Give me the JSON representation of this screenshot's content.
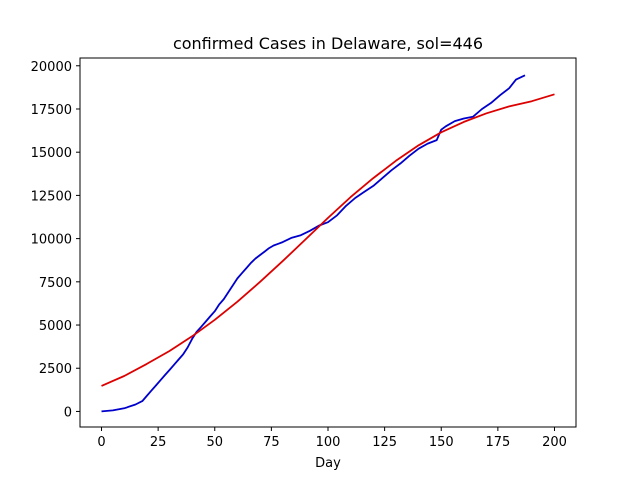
{
  "chart_data": {
    "type": "line",
    "title": "confirmed Cases in Delaware, sol=446",
    "xlabel": "Day",
    "ylabel": "",
    "xlim": [
      -9.5,
      209.5
    ],
    "ylim": [
      -900,
      20450
    ],
    "xticks": [
      0,
      25,
      50,
      75,
      100,
      125,
      150,
      175,
      200
    ],
    "yticks": [
      0,
      2500,
      5000,
      7500,
      10000,
      12500,
      15000,
      17500,
      20000
    ],
    "grid": false,
    "legend": null,
    "series": [
      {
        "color": "#0000cc",
        "x": [
          0,
          5,
          10,
          15,
          18,
          20,
          22,
          24,
          26,
          28,
          30,
          32,
          34,
          36,
          38,
          40,
          42,
          44,
          46,
          48,
          50,
          52,
          54,
          56,
          58,
          60,
          62,
          64,
          66,
          68,
          70,
          72,
          74,
          76,
          78,
          80,
          84,
          88,
          92,
          96,
          100,
          104,
          108,
          112,
          116,
          120,
          124,
          128,
          132,
          136,
          140,
          144,
          148,
          150,
          152,
          156,
          160,
          164,
          168,
          172,
          176,
          180,
          183,
          187
        ],
        "values": [
          0,
          60,
          180,
          400,
          600,
          900,
          1200,
          1500,
          1800,
          2100,
          2400,
          2700,
          3000,
          3300,
          3700,
          4200,
          4600,
          4900,
          5200,
          5500,
          5800,
          6200,
          6500,
          6900,
          7300,
          7700,
          8000,
          8300,
          8600,
          8850,
          9050,
          9250,
          9450,
          9600,
          9700,
          9800,
          10050,
          10200,
          10450,
          10750,
          10950,
          11350,
          11900,
          12350,
          12700,
          13050,
          13500,
          13950,
          14350,
          14800,
          15200,
          15500,
          15700,
          16300,
          16500,
          16800,
          16950,
          17050,
          17500,
          17850,
          18300,
          18700,
          19200,
          19450
        ]
      },
      {
        "color": "#dd0000",
        "x": [
          0,
          10,
          20,
          30,
          40,
          50,
          60,
          70,
          80,
          90,
          100,
          110,
          120,
          130,
          140,
          150,
          160,
          170,
          180,
          190,
          200
        ],
        "values": [
          1480,
          2050,
          2750,
          3500,
          4350,
          5300,
          6350,
          7500,
          8700,
          9950,
          11200,
          12400,
          13500,
          14500,
          15400,
          16150,
          16750,
          17250,
          17650,
          17950,
          18350
        ]
      }
    ]
  }
}
